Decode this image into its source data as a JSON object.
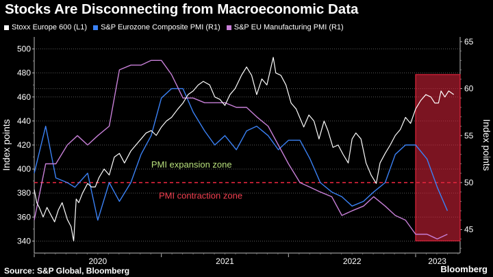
{
  "header": {
    "title": "Stocks Are Disconnecting from Macroeconomic Data"
  },
  "footer": {
    "source": "Source: S&P Global, Bloomberg",
    "brand": "Bloomberg"
  },
  "chart_data": {
    "type": "line",
    "title": "Stocks Are Disconnecting from Macroeconomic Data",
    "y_left": {
      "label": "Index points",
      "range": [
        330,
        510
      ],
      "ticks": [
        340,
        360,
        380,
        400,
        420,
        440,
        460,
        480,
        500
      ]
    },
    "y_right": {
      "label": "Index points",
      "range": [
        42.5,
        65.5
      ],
      "ticks": [
        45,
        50,
        55,
        60,
        65
      ]
    },
    "x_labels": [
      "2020",
      "2021",
      "2022",
      "2023"
    ],
    "x_range": [
      2020.0,
      2023.35
    ],
    "grid": "horizontal dotted",
    "legend_position": "top-left",
    "colors": {
      "stoxx": "#ffffff",
      "composite": "#3b82f6",
      "manufacturing": "#c880d8",
      "threshold": "#e0243c",
      "highlight": "#e0243c"
    },
    "threshold": {
      "value": 50,
      "axis": "right"
    },
    "annotations": [
      {
        "text": "PMI expansion zone",
        "color": "#b8e07c"
      },
      {
        "text": "PMI contraction zone",
        "color": "#f04050"
      }
    ],
    "highlight_region": {
      "x_start": 2023.0,
      "x_end": 2023.35
    },
    "series": [
      {
        "name": "Stoxx Europe 600 (L1)",
        "axis": "left",
        "points": [
          [
            2020.0,
            383
          ],
          [
            2020.02,
            372
          ],
          [
            2020.04,
            368
          ],
          [
            2020.07,
            360
          ],
          [
            2020.1,
            368
          ],
          [
            2020.13,
            362
          ],
          [
            2020.16,
            356
          ],
          [
            2020.19,
            366
          ],
          [
            2020.22,
            372
          ],
          [
            2020.26,
            358
          ],
          [
            2020.29,
            352
          ],
          [
            2020.31,
            340
          ],
          [
            2020.33,
            375
          ],
          [
            2020.35,
            372
          ],
          [
            2020.38,
            380
          ],
          [
            2020.42,
            388
          ],
          [
            2020.45,
            385
          ],
          [
            2020.48,
            385
          ],
          [
            2020.51,
            393
          ],
          [
            2020.55,
            400
          ],
          [
            2020.59,
            395
          ],
          [
            2020.63,
            410
          ],
          [
            2020.67,
            413
          ],
          [
            2020.71,
            405
          ],
          [
            2020.76,
            415
          ],
          [
            2020.8,
            420
          ],
          [
            2020.84,
            425
          ],
          [
            2020.88,
            430
          ],
          [
            2020.92,
            432
          ],
          [
            2020.96,
            428
          ],
          [
            2021.0,
            435
          ],
          [
            2021.04,
            440
          ],
          [
            2021.08,
            443
          ],
          [
            2021.13,
            450
          ],
          [
            2021.17,
            455
          ],
          [
            2021.21,
            462
          ],
          [
            2021.25,
            465
          ],
          [
            2021.29,
            470
          ],
          [
            2021.33,
            473
          ],
          [
            2021.38,
            470
          ],
          [
            2021.42,
            460
          ],
          [
            2021.46,
            458
          ],
          [
            2021.5,
            453
          ],
          [
            2021.54,
            462
          ],
          [
            2021.58,
            467
          ],
          [
            2021.63,
            478
          ],
          [
            2021.67,
            485
          ],
          [
            2021.71,
            478
          ],
          [
            2021.75,
            462
          ],
          [
            2021.79,
            475
          ],
          [
            2021.83,
            470
          ],
          [
            2021.88,
            493
          ],
          [
            2021.9,
            480
          ],
          [
            2021.94,
            478
          ],
          [
            2021.98,
            470
          ],
          [
            2022.02,
            455
          ],
          [
            2022.06,
            450
          ],
          [
            2022.08,
            445
          ],
          [
            2022.12,
            435
          ],
          [
            2022.16,
            445
          ],
          [
            2022.2,
            440
          ],
          [
            2022.24,
            425
          ],
          [
            2022.28,
            440
          ],
          [
            2022.31,
            432
          ],
          [
            2022.35,
            418
          ],
          [
            2022.39,
            420
          ],
          [
            2022.43,
            412
          ],
          [
            2022.47,
            405
          ],
          [
            2022.5,
            425
          ],
          [
            2022.53,
            430
          ],
          [
            2022.57,
            425
          ],
          [
            2022.61,
            405
          ],
          [
            2022.65,
            395
          ],
          [
            2022.69,
            388
          ],
          [
            2022.72,
            405
          ],
          [
            2022.76,
            413
          ],
          [
            2022.8,
            420
          ],
          [
            2022.84,
            428
          ],
          [
            2022.88,
            433
          ],
          [
            2022.92,
            443
          ],
          [
            2022.96,
            438
          ],
          [
            2023.0,
            450
          ],
          [
            2023.04,
            457
          ],
          [
            2023.08,
            462
          ],
          [
            2023.12,
            460
          ],
          [
            2023.15,
            455
          ],
          [
            2023.18,
            455
          ],
          [
            2023.2,
            465
          ],
          [
            2023.23,
            460
          ],
          [
            2023.26,
            465
          ],
          [
            2023.3,
            462
          ]
        ]
      },
      {
        "name": "S&P Eurozone Composite PMI (R1)",
        "axis": "right",
        "points": [
          [
            2020.0,
            51
          ],
          [
            2020.09,
            56
          ],
          [
            2020.17,
            50.5
          ],
          [
            2020.26,
            50
          ],
          [
            2020.32,
            49.5
          ],
          [
            2020.42,
            51
          ],
          [
            2020.5,
            46
          ],
          [
            2020.59,
            50
          ],
          [
            2020.67,
            48
          ],
          [
            2020.76,
            50
          ],
          [
            2020.84,
            53
          ],
          [
            2020.92,
            55
          ],
          [
            2021.0,
            59
          ],
          [
            2021.08,
            60
          ],
          [
            2021.17,
            60
          ],
          [
            2021.25,
            57.5
          ],
          [
            2021.34,
            55.5
          ],
          [
            2021.42,
            54
          ],
          [
            2021.5,
            55
          ],
          [
            2021.59,
            53.5
          ],
          [
            2021.67,
            55.5
          ],
          [
            2021.75,
            56
          ],
          [
            2021.84,
            55
          ],
          [
            2021.92,
            53.5
          ],
          [
            2022.0,
            54.5
          ],
          [
            2022.09,
            54.5
          ],
          [
            2022.17,
            52.5
          ],
          [
            2022.25,
            50
          ],
          [
            2022.34,
            49
          ],
          [
            2022.42,
            48.5
          ],
          [
            2022.5,
            47.5
          ],
          [
            2022.59,
            48
          ],
          [
            2022.67,
            49
          ],
          [
            2022.76,
            50
          ],
          [
            2022.84,
            53
          ],
          [
            2022.92,
            54
          ],
          [
            2023.0,
            54
          ],
          [
            2023.09,
            52.5
          ],
          [
            2023.17,
            49.5
          ],
          [
            2023.25,
            47
          ]
        ]
      },
      {
        "name": "S&P EU Manufacturing PMI (R1)",
        "axis": "right",
        "points": [
          [
            2020.0,
            46
          ],
          [
            2020.09,
            52
          ],
          [
            2020.17,
            52
          ],
          [
            2020.26,
            54
          ],
          [
            2020.34,
            55
          ],
          [
            2020.42,
            54
          ],
          [
            2020.5,
            55
          ],
          [
            2020.59,
            56
          ],
          [
            2020.67,
            62
          ],
          [
            2020.76,
            62.5
          ],
          [
            2020.84,
            62.5
          ],
          [
            2020.92,
            63
          ],
          [
            2021.0,
            63
          ],
          [
            2021.08,
            61.5
          ],
          [
            2021.17,
            59
          ],
          [
            2021.25,
            59
          ],
          [
            2021.34,
            58.5
          ],
          [
            2021.42,
            58.5
          ],
          [
            2021.5,
            58.5
          ],
          [
            2021.59,
            58
          ],
          [
            2021.67,
            58
          ],
          [
            2021.75,
            57
          ],
          [
            2021.84,
            56
          ],
          [
            2021.92,
            54
          ],
          [
            2022.0,
            52
          ],
          [
            2022.09,
            50
          ],
          [
            2022.17,
            49.5
          ],
          [
            2022.25,
            49
          ],
          [
            2022.34,
            48.5
          ],
          [
            2022.42,
            46.5
          ],
          [
            2022.5,
            47
          ],
          [
            2022.59,
            47.5
          ],
          [
            2022.67,
            48.5
          ],
          [
            2022.76,
            47.5
          ],
          [
            2022.84,
            46.5
          ],
          [
            2022.92,
            46
          ],
          [
            2023.0,
            44.5
          ],
          [
            2023.09,
            44.5
          ],
          [
            2023.17,
            44
          ],
          [
            2023.25,
            44.5
          ]
        ]
      }
    ]
  }
}
